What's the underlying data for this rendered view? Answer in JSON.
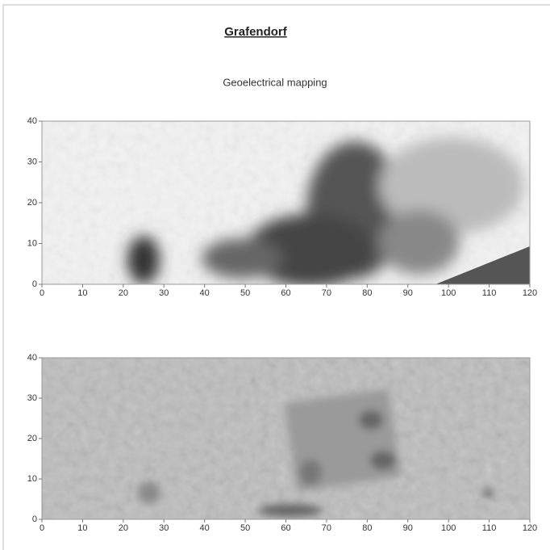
{
  "header": {
    "title": "Grafendorf",
    "subtitle": "Geoelectrical mapping"
  },
  "plots": [
    {
      "xticks": [
        0,
        10,
        20,
        30,
        40,
        50,
        60,
        70,
        80,
        90,
        100,
        110,
        120
      ],
      "yticks": [
        0,
        10,
        20,
        30,
        40
      ]
    },
    {
      "xticks": [
        0,
        10,
        20,
        30,
        40,
        50,
        60,
        70,
        80,
        90,
        100,
        110,
        120
      ],
      "yticks": [
        0,
        10,
        20,
        30,
        40
      ]
    }
  ]
}
